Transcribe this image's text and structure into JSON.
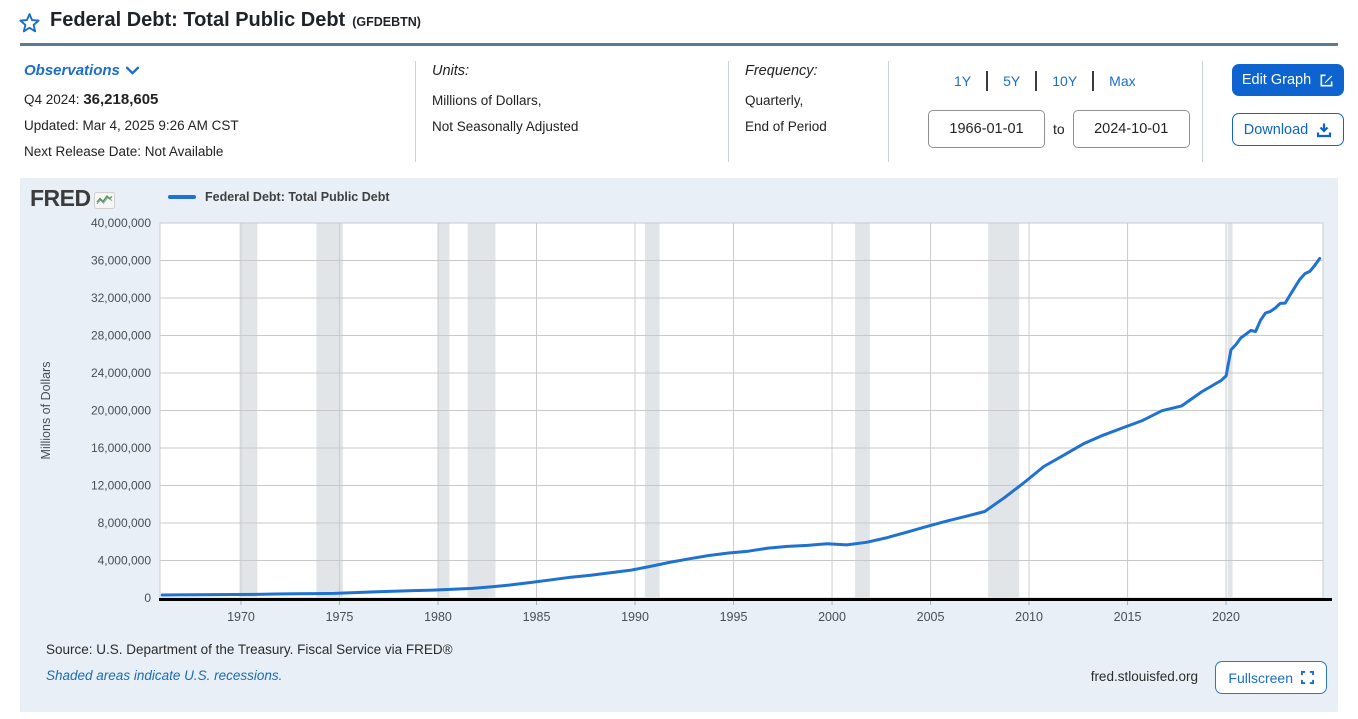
{
  "header": {
    "title": "Federal Debt: Total Public Debt",
    "series_id": "(GFDEBTN)"
  },
  "observations": {
    "label": "Observations",
    "period_label": "Q4 2024:",
    "latest_value": "36,218,605",
    "updated": "Updated: Mar 4, 2025 9:26 AM CST",
    "next_release": "Next Release Date: Not Available"
  },
  "units": {
    "label": "Units:",
    "line1": "Millions of Dollars,",
    "line2": "Not Seasonally Adjusted"
  },
  "frequency": {
    "label": "Frequency:",
    "line1": "Quarterly,",
    "line2": "End of Period"
  },
  "range": {
    "links": [
      "1Y",
      "5Y",
      "10Y",
      "Max"
    ],
    "start_date": "1966-01-01",
    "to_label": "to",
    "end_date": "2024-10-01"
  },
  "actions": {
    "edit_graph": "Edit Graph",
    "download": "Download",
    "fullscreen": "Fullscreen"
  },
  "branding": {
    "logo": "FRED",
    "site": "fred.stlouisfed.org"
  },
  "legend": {
    "label": "Federal Debt: Total Public Debt"
  },
  "footer": {
    "source": "Source: U.S. Department of the Treasury. Fiscal Service via FRED®",
    "recession_note": "Shaded areas indicate U.S. recessions."
  },
  "colors": {
    "link_blue": "#1b6ec9",
    "button_blue": "#0d63cf",
    "line_blue": "#1f72d2",
    "panel_bg": "#e9eff6",
    "title_divider": "#5b7a97",
    "recession_band": "#e2e5e8"
  },
  "chart_data": {
    "type": "line",
    "title": "Federal Debt: Total Public Debt",
    "xlabel": "",
    "ylabel": "Millions of Dollars",
    "x_range": [
      1965.89,
      2024.92
    ],
    "y_range": [
      0,
      40000000
    ],
    "xticks": [
      1970,
      1975,
      1980,
      1985,
      1990,
      1995,
      2000,
      2005,
      2010,
      2015,
      2020
    ],
    "yticks": [
      0,
      4000000,
      8000000,
      12000000,
      16000000,
      20000000,
      24000000,
      28000000,
      32000000,
      36000000,
      40000000
    ],
    "grid": true,
    "legend_position": "top-left",
    "colors": {
      "line": "#1f72d2",
      "recession_band": "#e2e5e8"
    },
    "recessions": [
      [
        1969.92,
        1970.83
      ],
      [
        1973.83,
        1975.17
      ],
      [
        1980.0,
        1980.58
      ],
      [
        1981.5,
        1982.92
      ],
      [
        1990.5,
        1991.25
      ],
      [
        2001.17,
        2001.92
      ],
      [
        2007.92,
        2009.5
      ],
      [
        2020.08,
        2020.33
      ]
    ],
    "series": [
      {
        "name": "Federal Debt: Total Public Debt",
        "x": [
          1966.0,
          1966.75,
          1967.75,
          1968.75,
          1969.75,
          1970.75,
          1971.75,
          1972.75,
          1973.75,
          1974.75,
          1975.75,
          1976.75,
          1977.75,
          1978.75,
          1979.75,
          1980.75,
          1981.75,
          1982.75,
          1983.75,
          1984.75,
          1985.75,
          1986.75,
          1987.75,
          1988.75,
          1989.75,
          1990.75,
          1991.75,
          1992.75,
          1993.75,
          1994.75,
          1995.75,
          1996.75,
          1997.75,
          1998.75,
          1999.75,
          2000.75,
          2001.75,
          2002.75,
          2003.75,
          2004.75,
          2005.75,
          2006.75,
          2007.75,
          2008.75,
          2009.75,
          2010.75,
          2011.75,
          2012.75,
          2013.75,
          2014.75,
          2015.75,
          2016.75,
          2017.75,
          2018.75,
          2019.75,
          2020.0,
          2020.25,
          2020.5,
          2020.75,
          2021.0,
          2021.25,
          2021.5,
          2021.75,
          2022.0,
          2022.25,
          2022.5,
          2022.75,
          2023.0,
          2023.25,
          2023.5,
          2023.75,
          2024.0,
          2024.25,
          2024.5,
          2024.75
        ],
        "values": [
          321000,
          329319,
          344663,
          358029,
          368226,
          389158,
          424131,
          449298,
          469899,
          492665,
          576649,
          653544,
          718943,
          789207,
          845116,
          930210,
          1028729,
          1197073,
          1410702,
          1662966,
          1945942,
          2214835,
          2431715,
          2684392,
          2952994,
          3364820,
          3801698,
          4177009,
          4535687,
          4800150,
          4988665,
          5323172,
          5502388,
          5614217,
          5776091,
          5662216,
          5943439,
          6405707,
          6998020,
          7596143,
          8170424,
          8680224,
          9229172,
          10699805,
          12311350,
          14025215,
          15222940,
          16432730,
          17351971,
          18141444,
          18922179,
          19976827,
          20492747,
          21974096,
          23201380,
          23687000,
          26477000,
          27026000,
          27747798,
          28133000,
          28529000,
          28427000,
          29617215,
          30401000,
          30569000,
          30929000,
          31419689,
          31458000,
          32332000,
          33167000,
          34001494,
          34587000,
          34832000,
          35465000,
          36218605
        ]
      }
    ]
  }
}
